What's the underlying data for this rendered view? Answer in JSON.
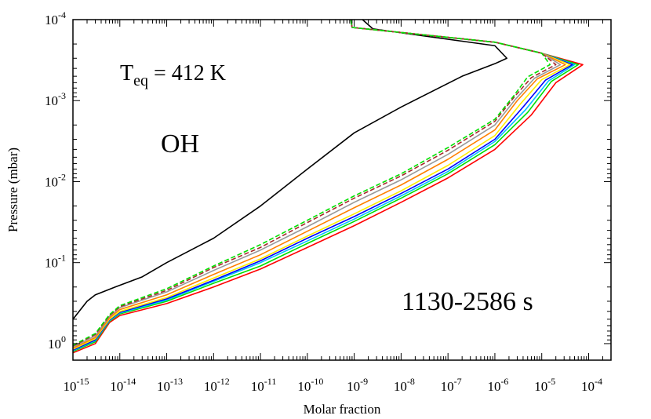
{
  "chart_data": {
    "type": "line",
    "xlabel": "Molar fraction",
    "ylabel": "Pressure (mbar)",
    "x_scale": "log",
    "y_scale": "log",
    "y_inverted": true,
    "xlim": [
      1e-15,
      0.0003
    ],
    "ylim": [
      1.6,
      0.0001
    ],
    "x_ticks": [
      {
        "value": 1e-15,
        "base": "10",
        "exp": "-15"
      },
      {
        "value": 1e-14,
        "base": "10",
        "exp": "-14"
      },
      {
        "value": 1e-13,
        "base": "10",
        "exp": "-13"
      },
      {
        "value": 1e-12,
        "base": "10",
        "exp": "-12"
      },
      {
        "value": 1e-11,
        "base": "10",
        "exp": "-11"
      },
      {
        "value": 1e-10,
        "base": "10",
        "exp": "-10"
      },
      {
        "value": 1e-09,
        "base": "10",
        "exp": "-9"
      },
      {
        "value": 1e-08,
        "base": "10",
        "exp": "-8"
      },
      {
        "value": 1e-07,
        "base": "10",
        "exp": "-7"
      },
      {
        "value": 1e-06,
        "base": "10",
        "exp": "-6"
      },
      {
        "value": 1e-05,
        "base": "10",
        "exp": "-5"
      },
      {
        "value": 0.0001,
        "base": "10",
        "exp": "-4"
      }
    ],
    "y_ticks": [
      {
        "value": 0.0001,
        "base": "10",
        "exp": "-4"
      },
      {
        "value": 0.001,
        "base": "10",
        "exp": "-3"
      },
      {
        "value": 0.01,
        "base": "10",
        "exp": "-2"
      },
      {
        "value": 0.1,
        "base": "10",
        "exp": "-1"
      },
      {
        "value": 1,
        "base": "10",
        "exp": "0"
      }
    ],
    "annotations": {
      "teq_main": "T",
      "teq_sub": "eq",
      "teq_value": " = 412 K",
      "species": "OH",
      "time_range": "1130-2586 s"
    },
    "series": [
      {
        "color": "#000000",
        "dashed": false,
        "points": [
          [
            1e-15,
            0.5
          ],
          [
            2e-15,
            0.3
          ],
          [
            3e-15,
            0.25
          ],
          [
            8e-15,
            0.2
          ],
          [
            3e-14,
            0.15
          ],
          [
            1e-13,
            0.1
          ],
          [
            1e-12,
            0.05
          ],
          [
            1e-11,
            0.02
          ],
          [
            1e-10,
            0.007
          ],
          [
            1e-09,
            0.0025
          ],
          [
            1e-08,
            0.0012
          ],
          [
            2e-07,
            0.0005
          ],
          [
            1e-06,
            0.00035
          ],
          [
            1.8e-06,
            0.0003
          ],
          [
            1e-06,
            0.00021
          ],
          [
            2.5e-09,
            0.00013
          ],
          [
            1.5e-09,
            0.0001
          ]
        ]
      },
      {
        "color": "#ff0000",
        "dashed": false,
        "points": [
          [
            1e-15,
            1.3
          ],
          [
            3e-15,
            1.0
          ],
          [
            6e-15,
            0.55
          ],
          [
            1e-14,
            0.45
          ],
          [
            1e-13,
            0.32
          ],
          [
            1e-12,
            0.2
          ],
          [
            1e-11,
            0.12
          ],
          [
            1e-10,
            0.065
          ],
          [
            1e-09,
            0.035
          ],
          [
            1e-08,
            0.018
          ],
          [
            1e-07,
            0.009
          ],
          [
            1e-06,
            0.004
          ],
          [
            6e-06,
            0.0015
          ],
          [
            2e-05,
            0.0006
          ],
          [
            7.5e-05,
            0.00036
          ],
          [
            1e-05,
            0.00026
          ],
          [
            1e-06,
            0.00019
          ],
          [
            9e-10,
            0.000125
          ],
          [
            8.5e-10,
            0.0001
          ]
        ]
      },
      {
        "color": "#00e000",
        "dashed": false,
        "points": [
          [
            1e-15,
            1.25
          ],
          [
            3e-15,
            0.95
          ],
          [
            6e-15,
            0.53
          ],
          [
            1e-14,
            0.43
          ],
          [
            1e-13,
            0.3
          ],
          [
            1e-12,
            0.18
          ],
          [
            1e-11,
            0.11
          ],
          [
            1e-10,
            0.058
          ],
          [
            1e-09,
            0.031
          ],
          [
            1e-08,
            0.016
          ],
          [
            1e-07,
            0.008
          ],
          [
            1e-06,
            0.0035
          ],
          [
            5e-06,
            0.0014
          ],
          [
            1.6e-05,
            0.00058
          ],
          [
            6e-05,
            0.00036
          ],
          [
            1e-05,
            0.00026
          ],
          [
            1e-06,
            0.00019
          ],
          [
            9e-10,
            0.000125
          ],
          [
            8.5e-10,
            0.0001
          ]
        ]
      },
      {
        "color": "#00c0ff",
        "dashed": false,
        "points": [
          [
            1e-15,
            1.22
          ],
          [
            3e-15,
            0.92
          ],
          [
            6e-15,
            0.52
          ],
          [
            1e-14,
            0.42
          ],
          [
            1e-13,
            0.29
          ],
          [
            1e-12,
            0.17
          ],
          [
            1e-11,
            0.1
          ],
          [
            1e-10,
            0.054
          ],
          [
            1e-09,
            0.029
          ],
          [
            1e-08,
            0.015
          ],
          [
            1e-07,
            0.0075
          ],
          [
            1e-06,
            0.0032
          ],
          [
            4.5e-06,
            0.0013
          ],
          [
            1.4e-05,
            0.00057
          ],
          [
            5e-05,
            0.00036
          ],
          [
            1e-05,
            0.00026
          ],
          [
            1e-06,
            0.00019
          ],
          [
            9e-10,
            0.000125
          ],
          [
            8.5e-10,
            0.0001
          ]
        ]
      },
      {
        "color": "#0000ff",
        "dashed": false,
        "points": [
          [
            1e-15,
            1.2
          ],
          [
            3e-15,
            0.9
          ],
          [
            6e-15,
            0.51
          ],
          [
            1e-14,
            0.41
          ],
          [
            1e-13,
            0.28
          ],
          [
            1e-12,
            0.165
          ],
          [
            1e-11,
            0.095
          ],
          [
            1e-10,
            0.05
          ],
          [
            1e-09,
            0.027
          ],
          [
            1e-08,
            0.014
          ],
          [
            1e-07,
            0.007
          ],
          [
            1e-06,
            0.003
          ],
          [
            4e-06,
            0.0012
          ],
          [
            1.2e-05,
            0.00056
          ],
          [
            4.5e-05,
            0.00036
          ],
          [
            1e-05,
            0.00026
          ],
          [
            1e-06,
            0.00019
          ],
          [
            9e-10,
            0.000125
          ],
          [
            8.5e-10,
            0.0001
          ]
        ]
      },
      {
        "color": "#ffee00",
        "dashed": false,
        "points": [
          [
            1e-15,
            1.17
          ],
          [
            3e-15,
            0.87
          ],
          [
            6e-15,
            0.5
          ],
          [
            1e-14,
            0.4
          ],
          [
            1e-13,
            0.27
          ],
          [
            1e-12,
            0.155
          ],
          [
            1e-11,
            0.09
          ],
          [
            1e-10,
            0.047
          ],
          [
            1e-09,
            0.025
          ],
          [
            1e-08,
            0.013
          ],
          [
            1e-07,
            0.0063
          ],
          [
            1e-06,
            0.0027
          ],
          [
            3.5e-06,
            0.0011
          ],
          [
            1e-05,
            0.00055
          ],
          [
            4e-05,
            0.00036
          ],
          [
            1e-05,
            0.00026
          ],
          [
            1e-06,
            0.00019
          ],
          [
            9e-10,
            0.000125
          ],
          [
            8.5e-10,
            0.0001
          ]
        ]
      },
      {
        "color": "#ff8000",
        "dashed": false,
        "points": [
          [
            1e-15,
            1.14
          ],
          [
            3e-15,
            0.84
          ],
          [
            6e-15,
            0.48
          ],
          [
            1e-14,
            0.38
          ],
          [
            1e-13,
            0.25
          ],
          [
            1e-12,
            0.14
          ],
          [
            1e-11,
            0.08
          ],
          [
            1e-10,
            0.041
          ],
          [
            1e-09,
            0.021
          ],
          [
            1e-08,
            0.011
          ],
          [
            1e-07,
            0.0053
          ],
          [
            1e-06,
            0.0023
          ],
          [
            3e-06,
            0.001
          ],
          [
            8e-06,
            0.00054
          ],
          [
            3.2e-05,
            0.00036
          ],
          [
            1e-05,
            0.00026
          ],
          [
            1e-06,
            0.00019
          ],
          [
            9e-10,
            0.000125
          ],
          [
            8.5e-10,
            0.0001
          ]
        ]
      },
      {
        "color": "#999999",
        "dashed": false,
        "points": [
          [
            1e-15,
            1.1
          ],
          [
            3e-15,
            0.8
          ],
          [
            6e-15,
            0.46
          ],
          [
            1e-14,
            0.36
          ],
          [
            1e-13,
            0.23
          ],
          [
            1e-12,
            0.125
          ],
          [
            1e-11,
            0.07
          ],
          [
            1e-10,
            0.036
          ],
          [
            1e-09,
            0.018
          ],
          [
            1e-08,
            0.0095
          ],
          [
            1e-07,
            0.0046
          ],
          [
            1e-06,
            0.002
          ],
          [
            2.8e-06,
            0.00095
          ],
          [
            7e-06,
            0.00053
          ],
          [
            2.5e-05,
            0.00036
          ],
          [
            1e-05,
            0.00026
          ],
          [
            1e-06,
            0.00019
          ],
          [
            9e-10,
            0.000125
          ],
          [
            8.5e-10,
            0.0001
          ]
        ]
      },
      {
        "color": "#a52a2a",
        "dashed": true,
        "points": [
          [
            1e-15,
            1.07
          ],
          [
            3e-15,
            0.77
          ],
          [
            6e-15,
            0.45
          ],
          [
            1e-14,
            0.35
          ],
          [
            1e-13,
            0.22
          ],
          [
            1e-12,
            0.115
          ],
          [
            1e-11,
            0.065
          ],
          [
            1e-10,
            0.032
          ],
          [
            1e-09,
            0.016
          ],
          [
            1e-08,
            0.0085
          ],
          [
            1e-07,
            0.0041
          ],
          [
            1e-06,
            0.0018
          ],
          [
            2.6e-06,
            0.0009
          ],
          [
            6e-06,
            0.00052
          ],
          [
            2e-05,
            0.00036
          ],
          [
            1e-05,
            0.00026
          ],
          [
            1e-06,
            0.00019
          ],
          [
            9e-10,
            0.000125
          ],
          [
            8.5e-10,
            0.0001
          ]
        ]
      },
      {
        "color": "#00e000",
        "dashed": true,
        "points": [
          [
            1e-15,
            1.05
          ],
          [
            3e-15,
            0.75
          ],
          [
            6e-15,
            0.44
          ],
          [
            1e-14,
            0.34
          ],
          [
            1e-13,
            0.21
          ],
          [
            1e-12,
            0.11
          ],
          [
            1e-11,
            0.06
          ],
          [
            1e-10,
            0.03
          ],
          [
            1e-09,
            0.015
          ],
          [
            1e-08,
            0.008
          ],
          [
            1e-07,
            0.0038
          ],
          [
            1e-06,
            0.0017
          ],
          [
            2.5e-06,
            0.00088
          ],
          [
            5e-06,
            0.00051
          ],
          [
            1.5e-05,
            0.00036
          ],
          [
            1e-05,
            0.00026
          ],
          [
            1e-06,
            0.00019
          ],
          [
            9e-10,
            0.000125
          ],
          [
            8.5e-10,
            0.0001
          ]
        ]
      }
    ]
  }
}
